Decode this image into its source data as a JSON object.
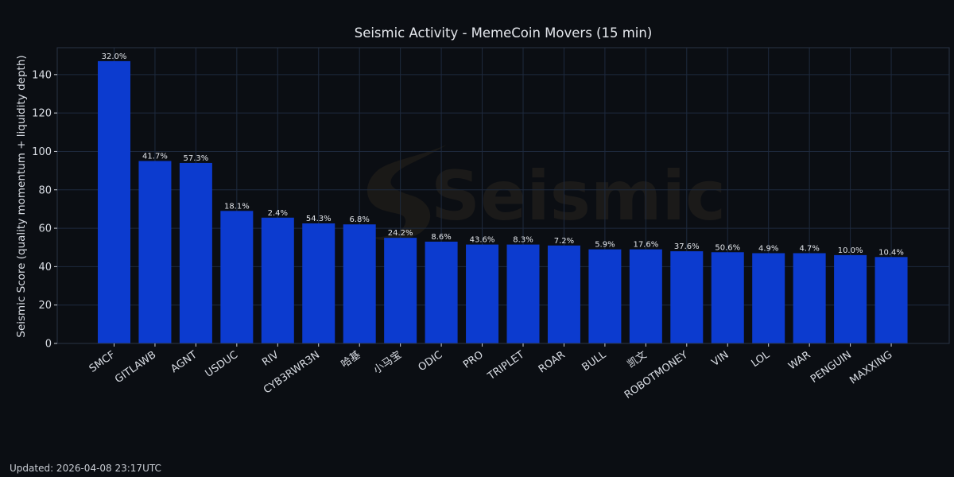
{
  "chart_data": {
    "type": "bar",
    "title": "Seismic Activity - MemeCoin Movers (15 min)",
    "xlabel": "",
    "ylabel": "Seismic Score (quality momentum + liquidity depth)",
    "ylim": [
      0,
      154
    ],
    "yticks": [
      0,
      20,
      40,
      60,
      80,
      100,
      120,
      140
    ],
    "grid": true,
    "bar_color": "#0c3bcf",
    "categories": [
      "SMCF",
      "GITLAWB",
      "AGNT",
      "USDUC",
      "RIV",
      "CYB3RWR3N",
      "哈基",
      "小马宝",
      "ODIC",
      "PRO",
      "TRIPLET",
      "ROAR",
      "BULL",
      "凯文",
      "ROBOTMONEY",
      "VIN",
      "LOL",
      "WAR",
      "PENGUIN",
      "MAXXING"
    ],
    "values": [
      147,
      95,
      94,
      69,
      65.5,
      62.5,
      62,
      55,
      53,
      51.5,
      51.5,
      51,
      49,
      49,
      48,
      47.5,
      47,
      47,
      46,
      45
    ],
    "labels": [
      "32.0%",
      "41.7%",
      "57.3%",
      "18.1%",
      "2.4%",
      "54.3%",
      "6.8%",
      "24.2%",
      "8.6%",
      "43.6%",
      "8.3%",
      "7.2%",
      "5.9%",
      "17.6%",
      "37.6%",
      "50.6%",
      "4.9%",
      "4.7%",
      "10.0%",
      "10.4%"
    ]
  },
  "watermark": "Seismic",
  "footer": {
    "updated": "Updated: 2026-04-08 23:17UTC"
  },
  "colors": {
    "background": "#0b0e13",
    "bar": "#0c3bcf",
    "grid": "#1e2a3e",
    "text": "#d8dce3",
    "watermark": "#1b1a19"
  }
}
